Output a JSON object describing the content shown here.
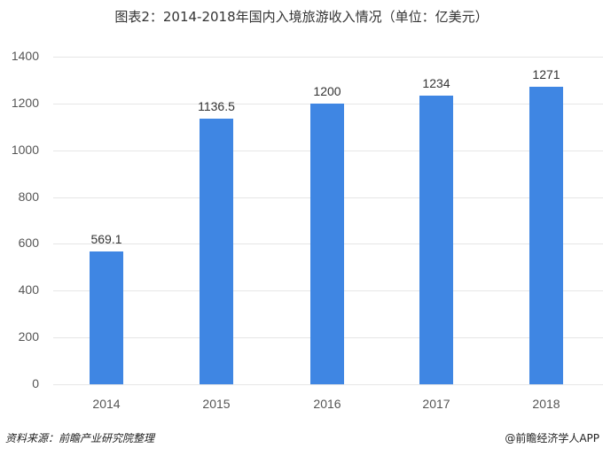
{
  "title": "图表2：2014-2018年国内入境旅游收入情况（单位：亿美元）",
  "source": "资料来源：前瞻产业研究院整理",
  "credit": "@前瞻经济学人APP",
  "colors": {
    "bar": "#3f86e3",
    "grid": "#e6e6e6"
  },
  "chart_data": {
    "type": "bar",
    "title": "图表2：2014-2018年国内入境旅游收入情况（单位：亿美元）",
    "xlabel": "",
    "ylabel": "",
    "categories": [
      "2014",
      "2015",
      "2016",
      "2017",
      "2018"
    ],
    "values": [
      569.1,
      1136.5,
      1200,
      1234,
      1271
    ],
    "value_labels": [
      "569.1",
      "1136.5",
      "1200",
      "1234",
      "1271"
    ],
    "ylim": [
      0,
      1400
    ],
    "yticks": [
      "0",
      "200",
      "400",
      "600",
      "800",
      "1000",
      "1200",
      "1400"
    ],
    "grid": true,
    "legend": false
  }
}
